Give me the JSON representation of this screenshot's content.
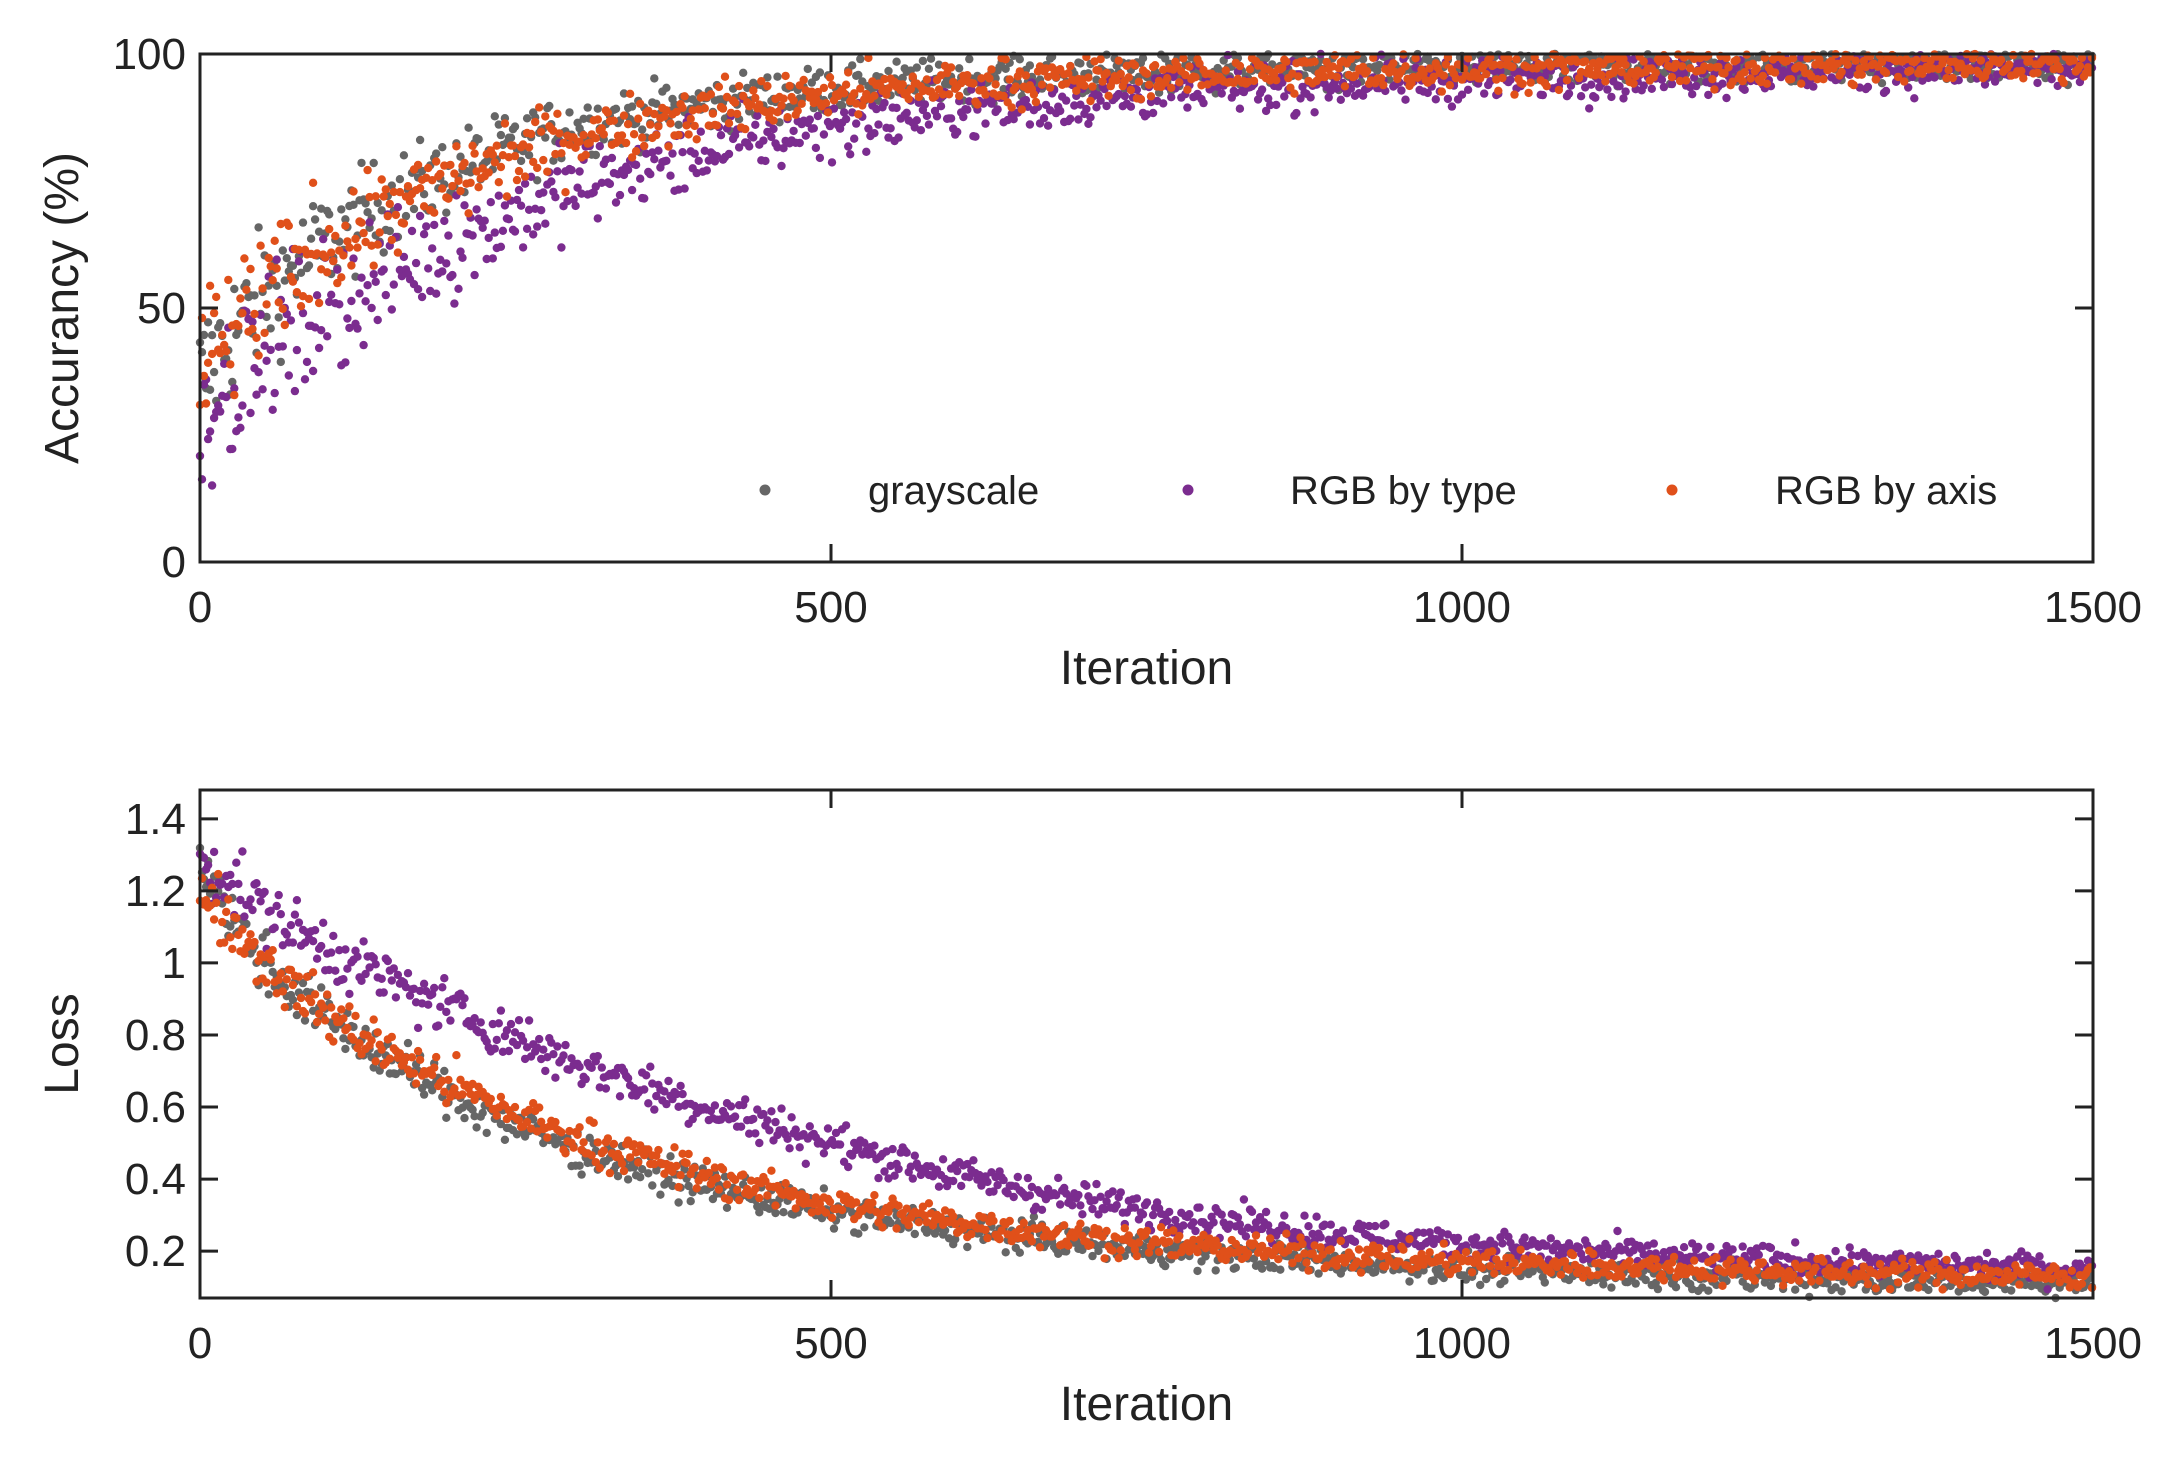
{
  "chart_data": [
    {
      "type": "scatter",
      "title": "",
      "xlabel": "Iteration",
      "ylabel": "Accurancy (%)",
      "xlim": [
        0,
        1500
      ],
      "ylim": [
        0,
        100
      ],
      "xticks": [
        0,
        500,
        1000,
        1500
      ],
      "xtick_labels": [
        "0",
        "500",
        "1000",
        "1500"
      ],
      "yticks": [
        0,
        50,
        100
      ],
      "ytick_labels": [
        "0",
        "50",
        "100"
      ],
      "grid": false,
      "legend_position": "bottom-right",
      "series": [
        {
          "name": "grayscale",
          "color": "#666666",
          "x": [
            0,
            25,
            50,
            75,
            100,
            150,
            200,
            250,
            300,
            400,
            500,
            600,
            700,
            800,
            900,
            1000,
            1100,
            1200,
            1300,
            1400,
            1500
          ],
          "y": [
            35,
            45,
            52,
            58,
            63,
            71,
            77,
            82,
            86,
            90,
            93,
            95,
            96,
            96.5,
            97,
            97,
            97.5,
            97.5,
            98,
            98,
            98
          ]
        },
        {
          "name": "RGB by type",
          "color": "#7B2C8F",
          "x": [
            0,
            25,
            50,
            75,
            100,
            150,
            200,
            250,
            300,
            400,
            500,
            600,
            700,
            800,
            900,
            1000,
            1100,
            1200,
            1300,
            1400,
            1500
          ],
          "y": [
            30,
            36,
            41,
            46,
            50,
            57,
            63,
            69,
            74,
            81,
            86,
            89,
            91,
            93,
            94,
            95,
            95.5,
            96,
            96.5,
            97,
            97
          ]
        },
        {
          "name": "RGB by axis",
          "color": "#E0501A",
          "x": [
            0,
            25,
            50,
            75,
            100,
            150,
            200,
            250,
            300,
            400,
            500,
            600,
            700,
            800,
            900,
            1000,
            1100,
            1200,
            1300,
            1400,
            1500
          ],
          "y": [
            37,
            45,
            51,
            57,
            62,
            69,
            75,
            80,
            84,
            89,
            92,
            94,
            95,
            96,
            96.5,
            97,
            97,
            97.5,
            97.5,
            98,
            98
          ]
        }
      ]
    },
    {
      "type": "scatter",
      "title": "",
      "xlabel": "Iteration",
      "ylabel": "Loss",
      "xlim": [
        0,
        1500
      ],
      "ylim": [
        0.07,
        1.48
      ],
      "xticks": [
        0,
        500,
        1000,
        1500
      ],
      "xtick_labels": [
        "0",
        "500",
        "1000",
        "1500"
      ],
      "yticks": [
        0.2,
        0.4,
        0.6,
        0.8,
        1,
        1.2,
        1.4
      ],
      "ytick_labels": [
        "0.2",
        "0.4",
        "0.6",
        "0.8",
        "1",
        "1.2",
        "1.4"
      ],
      "grid": false,
      "series": [
        {
          "name": "grayscale",
          "color": "#666666",
          "x": [
            0,
            25,
            50,
            75,
            100,
            150,
            200,
            250,
            300,
            400,
            500,
            600,
            700,
            800,
            900,
            1000,
            1100,
            1200,
            1300,
            1400,
            1500
          ],
          "y": [
            1.3,
            1.12,
            1.0,
            0.92,
            0.85,
            0.73,
            0.63,
            0.55,
            0.48,
            0.38,
            0.31,
            0.26,
            0.22,
            0.19,
            0.17,
            0.15,
            0.14,
            0.13,
            0.12,
            0.115,
            0.11
          ]
        },
        {
          "name": "RGB by type",
          "color": "#7B2C8F",
          "x": [
            0,
            25,
            50,
            75,
            100,
            150,
            200,
            250,
            300,
            400,
            500,
            600,
            700,
            800,
            900,
            1000,
            1100,
            1200,
            1300,
            1400,
            1500
          ],
          "y": [
            1.3,
            1.22,
            1.15,
            1.09,
            1.04,
            0.95,
            0.87,
            0.79,
            0.72,
            0.6,
            0.5,
            0.41,
            0.34,
            0.29,
            0.25,
            0.22,
            0.2,
            0.18,
            0.17,
            0.16,
            0.15
          ]
        },
        {
          "name": "RGB by axis",
          "color": "#E0501A",
          "x": [
            0,
            25,
            50,
            75,
            100,
            150,
            200,
            250,
            300,
            400,
            500,
            600,
            700,
            800,
            900,
            1000,
            1100,
            1200,
            1300,
            1400,
            1500
          ],
          "y": [
            1.22,
            1.11,
            1.01,
            0.93,
            0.86,
            0.75,
            0.66,
            0.58,
            0.51,
            0.41,
            0.33,
            0.28,
            0.24,
            0.21,
            0.19,
            0.17,
            0.16,
            0.15,
            0.14,
            0.135,
            0.13
          ]
        }
      ]
    }
  ]
}
